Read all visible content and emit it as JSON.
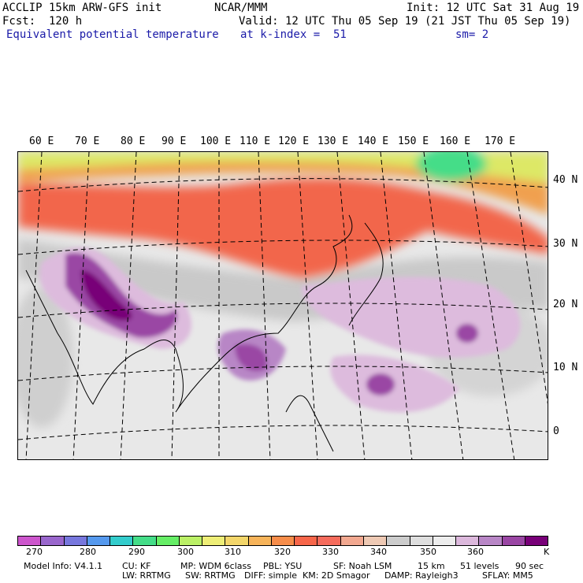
{
  "header": {
    "model": "ACCLIP 15km ARW-GFS init",
    "center": "NCAR/MMM",
    "init": "Init: 12 UTC Sat 31 Aug 19",
    "fcst": "Fcst:  120 h",
    "valid": "Valid: 12 UTC Thu 05 Sep 19 (21 JST Thu 05 Sep 19)",
    "field": "Equivalent potential temperature",
    "level": "at k-index =  51",
    "smooth": "sm= 2"
  },
  "lon_labels": [
    "60 E",
    "70 E",
    "80 E",
    "90 E",
    "100 E",
    "110 E",
    "120 E",
    "130 E",
    "140 E",
    "150 E",
    "160 E",
    "170 E"
  ],
  "lat_labels": [
    "40 N",
    "30 N",
    "20 N",
    "10 N",
    "0"
  ],
  "colorbar": {
    "colors": [
      "#cc55cc",
      "#9966cc",
      "#7777dd",
      "#5599ee",
      "#33cccc",
      "#44dd88",
      "#66ee66",
      "#bbf066",
      "#eeee77",
      "#f3d66a",
      "#f7b45a",
      "#f78d4a",
      "#f7664a",
      "#f56b5c",
      "#f2a890",
      "#eec9b4",
      "#cccccc",
      "#dedede",
      "#ededed",
      "#dcb8dc",
      "#b886c6",
      "#9a46a4",
      "#780078"
    ],
    "labels": [
      "270",
      "280",
      "290",
      "300",
      "310",
      "320",
      "330",
      "340",
      "350",
      "360"
    ],
    "unit": "K"
  },
  "model_info": {
    "line1": [
      "Model Info: V4.1.1",
      "CU: KF",
      "MP: WDM 6class",
      "PBL: YSU",
      "SF: Noah LSM",
      "15 km",
      "51 levels",
      "90 sec"
    ],
    "line2": [
      "LW: RRTMG",
      "SW: RRTMG",
      "DIFF: simple",
      "KM: 2D Smagor",
      "DAMP: Rayleigh3",
      "SFLAY: MM5"
    ]
  }
}
